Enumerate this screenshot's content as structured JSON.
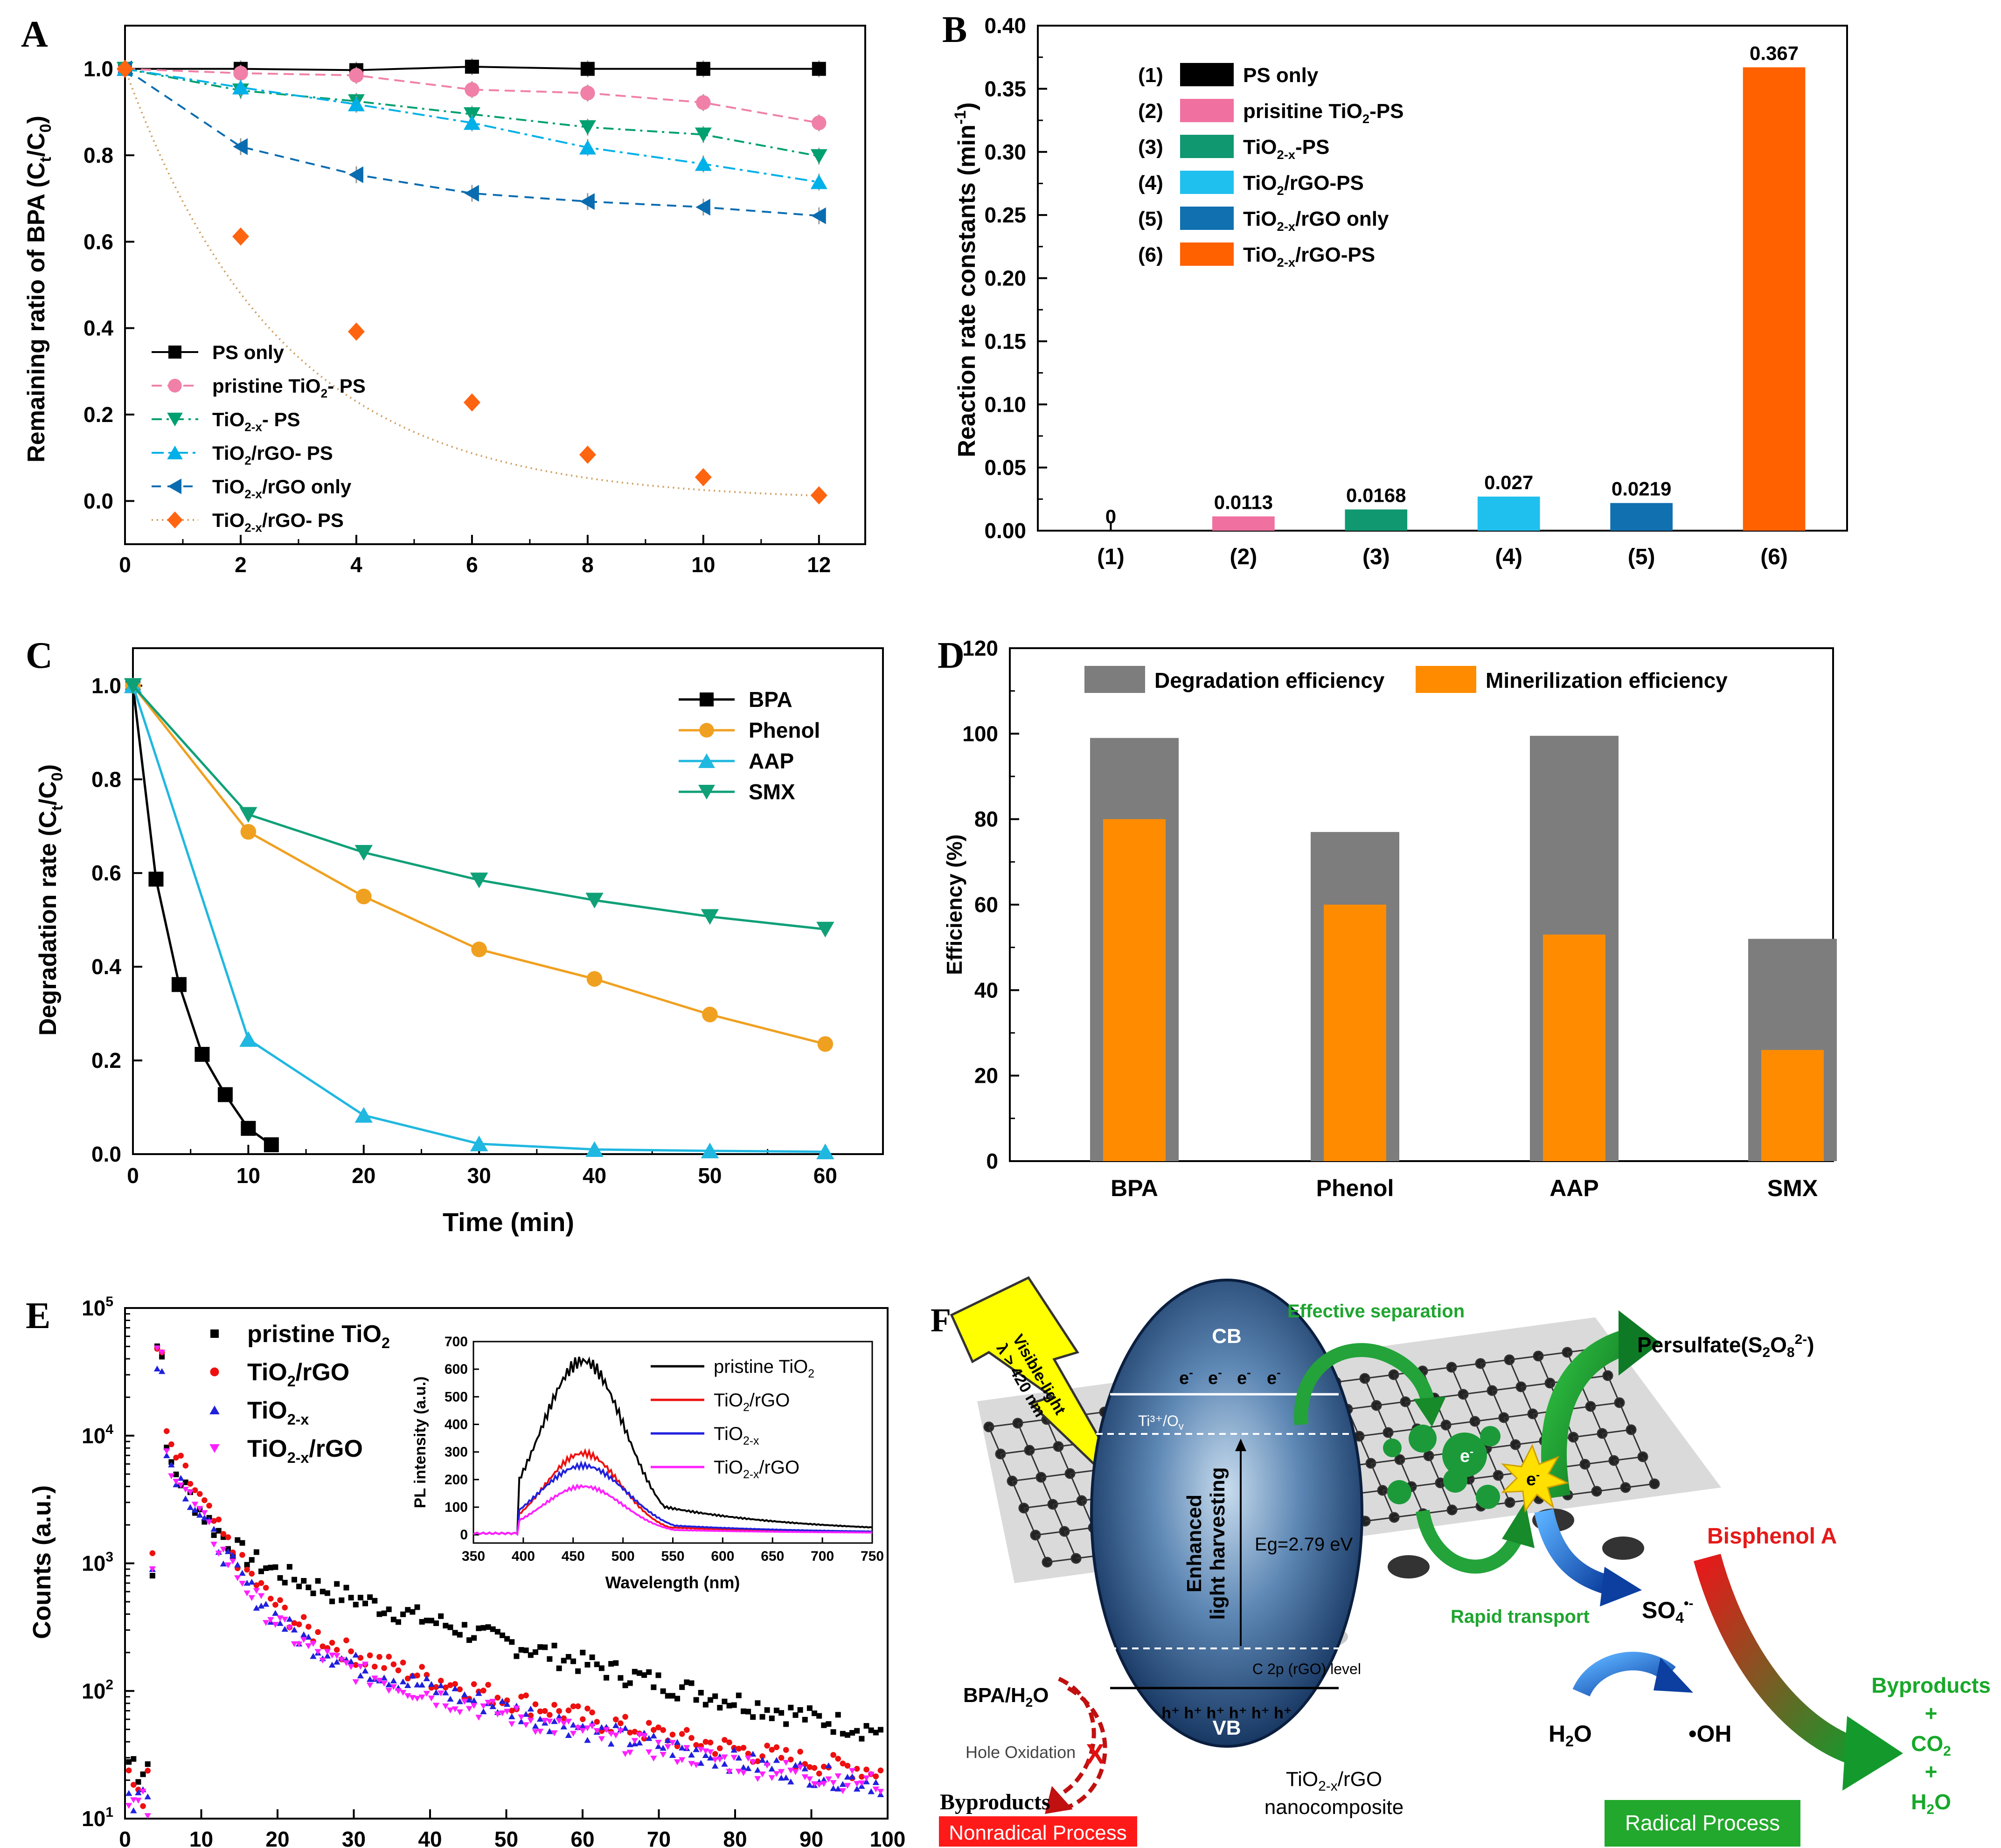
{
  "colors": {
    "black": "#000000",
    "pink": "#f080a8",
    "green": "#00a070",
    "cyan": "#00b0e8",
    "blue": "#0a6cb0",
    "orange": "#ff6410",
    "grey": "#7d7d7d",
    "amber": "#ff8c00",
    "phenol": "#f0a020",
    "aap": "#20b8e0",
    "smx": "#10a078",
    "pinkB": "#f070a0",
    "greenB": "#109870",
    "cyanB": "#20c0ee",
    "blueB": "#1070b0",
    "orangeB": "#ff6000",
    "red": "#ee1010",
    "purple": "#2020dd",
    "magenta": "#ff20ff"
  },
  "panel_labels": {
    "a": "A",
    "b": "B",
    "c": "C",
    "d": "D",
    "e": "E",
    "f": "F"
  },
  "chart_data": [
    {
      "id": "A",
      "type": "line",
      "ylabel_main": "Remaining ratio of BPA  (C",
      "ylabel_sub1": "t",
      "ylabel_mid": "/C",
      "ylabel_sub2": "0",
      "ylabel_end": ")",
      "xlim": [
        0,
        12.8
      ],
      "ylim": [
        -0.1,
        1.1
      ],
      "xticks": [
        "0",
        "2",
        "4",
        "6",
        "8",
        "10",
        "12"
      ],
      "yticks": [
        "0.0",
        "0.2",
        "0.4",
        "0.6",
        "0.8",
        "1.0"
      ],
      "x": [
        0,
        2,
        4,
        6,
        8,
        10,
        12
      ],
      "series": [
        {
          "name": "PS only",
          "values": [
            1.0,
            1.0,
            0.997,
            1.005,
            1.0,
            1.0,
            1.0
          ]
        },
        {
          "name": "pristine TiO",
          "sub": "2",
          "tail": "- PS",
          "values": [
            1.0,
            0.99,
            0.985,
            0.952,
            0.944,
            0.922,
            0.875
          ]
        },
        {
          "name": "TiO",
          "sub": "2-x",
          "tail": "- PS",
          "values": [
            1.0,
            0.95,
            0.925,
            0.895,
            0.865,
            0.848,
            0.798
          ]
        },
        {
          "name": "TiO",
          "sub": "2",
          "tail": "/rGO- PS",
          "values": [
            1.0,
            0.957,
            0.918,
            0.875,
            0.818,
            0.78,
            0.738
          ]
        },
        {
          "name": "TiO",
          "sub": "2-x",
          "tail": "/rGO only",
          "values": [
            1.0,
            0.82,
            0.755,
            0.712,
            0.693,
            0.68,
            0.66
          ]
        },
        {
          "name": "TiO",
          "sub": "2-x",
          "tail": "/rGO- PS",
          "values": [
            1.0,
            0.612,
            0.392,
            0.228,
            0.107,
            0.055,
            0.013
          ]
        }
      ]
    },
    {
      "id": "B",
      "type": "bar",
      "ylabel_main": "Reaction rate constants (min",
      "ylabel_sup": "-1",
      "ylabel_end": ")",
      "ylim": [
        0,
        0.4
      ],
      "yticks": [
        "0.00",
        "0.05",
        "0.10",
        "0.15",
        "0.20",
        "0.25",
        "0.30",
        "0.35",
        "0.40"
      ],
      "categories": [
        "(1)",
        "(2)",
        "(3)",
        "(4)",
        "(5)",
        "(6)"
      ],
      "values": [
        0,
        0.0113,
        0.0168,
        0.027,
        0.0219,
        0.367
      ],
      "value_labels": [
        "0",
        "0.0113",
        "0.0168",
        "0.027",
        "0.0219",
        "0.367"
      ],
      "legend": [
        {
          "num": "(1)",
          "name": "PS only"
        },
        {
          "num": "(2)",
          "name": "prisitine TiO",
          "sub": "2",
          "tail": "-PS"
        },
        {
          "num": "(3)",
          "name": "TiO",
          "sub": "2-x",
          "tail": "-PS"
        },
        {
          "num": "(4)",
          "name": "TiO",
          "sub": "2",
          "tail": "/rGO-PS"
        },
        {
          "num": "(5)",
          "name": "TiO",
          "sub": "2-x",
          "tail": "/rGO only"
        },
        {
          "num": "(6)",
          "name": "TiO",
          "sub": "2-x",
          "tail": "/rGO-PS"
        }
      ]
    },
    {
      "id": "C",
      "type": "line",
      "xlabel": "Time (min)",
      "ylabel_main": "Degradation rate (C",
      "ylabel_sub1": "t",
      "ylabel_mid": "/C",
      "ylabel_sub2": "0",
      "ylabel_end": ")",
      "xlim": [
        0,
        65
      ],
      "ylim": [
        0,
        1.08
      ],
      "xticks": [
        "0",
        "10",
        "20",
        "30",
        "40",
        "50",
        "60"
      ],
      "yticks": [
        "0.0",
        "0.2",
        "0.4",
        "0.6",
        "0.8",
        "1.0"
      ],
      "series": [
        {
          "name": "BPA",
          "x": [
            0,
            2,
            4,
            6,
            8,
            10,
            12
          ],
          "values": [
            1.0,
            0.587,
            0.362,
            0.213,
            0.127,
            0.055,
            0.02
          ]
        },
        {
          "name": "Phenol",
          "x": [
            0,
            10,
            20,
            30,
            40,
            50,
            60
          ],
          "values": [
            1.0,
            0.688,
            0.55,
            0.437,
            0.374,
            0.298,
            0.235
          ]
        },
        {
          "name": "AAP",
          "x": [
            0,
            10,
            20,
            30,
            40,
            50,
            60
          ],
          "values": [
            1.0,
            0.245,
            0.083,
            0.022,
            0.01,
            0.007,
            0.005
          ]
        },
        {
          "name": "SMX",
          "x": [
            0,
            10,
            20,
            30,
            40,
            50,
            60
          ],
          "values": [
            1.0,
            0.725,
            0.644,
            0.585,
            0.542,
            0.507,
            0.48
          ]
        }
      ]
    },
    {
      "id": "D",
      "type": "bar",
      "ylabel": "Efficiency (%)",
      "ylim": [
        0,
        120
      ],
      "yticks": [
        "0",
        "20",
        "40",
        "60",
        "80",
        "100",
        "120"
      ],
      "categories": [
        "BPA",
        "Phenol",
        "AAP",
        "SMX"
      ],
      "series": [
        {
          "name": "Degradation efficiency",
          "values": [
            99,
            77,
            99.5,
            52
          ]
        },
        {
          "name": "Minerilization efficiency",
          "values": [
            80,
            60,
            53,
            26
          ]
        }
      ]
    },
    {
      "id": "E",
      "type": "scatter",
      "ylabel": "Counts (a.u.)",
      "xlim": [
        0,
        100
      ],
      "ylim_log10": [
        1,
        5
      ],
      "xticks": [
        "0",
        "10",
        "20",
        "30",
        "40",
        "50",
        "60",
        "70",
        "80",
        "90",
        "100"
      ],
      "yticks": [
        {
          "b": "10",
          "e": "1"
        },
        {
          "b": "10",
          "e": "2"
        },
        {
          "b": "10",
          "e": "3"
        },
        {
          "b": "10",
          "e": "4"
        },
        {
          "b": "10",
          "e": "5"
        }
      ],
      "series": [
        {
          "name": "pristine TiO",
          "sub": "2",
          "peak": 50000,
          "fast": 8000,
          "slow": 1500,
          "tau1": 3.2,
          "tau2": 24,
          "bg": 20,
          "pre": 28
        },
        {
          "name": "TiO",
          "sub": "2",
          "tail": "/rGO",
          "peak": 45000,
          "fast": 12000,
          "slow": 500,
          "tau1": 3.8,
          "tau2": 24,
          "bg": 14,
          "pre": 18
        },
        {
          "name": "TiO",
          "sub": "2-x",
          "peak": 40000,
          "fast": 9000,
          "slow": 420,
          "tau1": 3.8,
          "tau2": 24,
          "bg": 11,
          "pre": 15
        },
        {
          "name": "TiO",
          "sub": "2-x",
          "tail": "/rGO",
          "peak": 42000,
          "fast": 9000,
          "slow": 360,
          "tau1": 3.8,
          "tau2": 24,
          "bg": 12,
          "pre": 12
        }
      ],
      "inset": {
        "type": "line",
        "xlabel": "Wavelength (nm)",
        "ylabel": "PL intensity (a.u.)",
        "xlim": [
          350,
          750
        ],
        "ylim": [
          -30,
          700
        ],
        "xticks": [
          "350",
          "400",
          "450",
          "500",
          "550",
          "600",
          "650",
          "700",
          "750"
        ],
        "yticks": [
          "0",
          "100",
          "200",
          "300",
          "400",
          "500",
          "600",
          "700"
        ],
        "series": [
          {
            "name": "pristine TiO",
            "sub": "2",
            "peak": 625,
            "sigma": 42,
            "tail": 0.5
          },
          {
            "name": "TiO",
            "sub": "2",
            "tail_txt": "/rGO",
            "peak": 290,
            "sigma": 38,
            "tail": 0.25
          },
          {
            "name": "TiO",
            "sub": "2-x",
            "peak": 245,
            "sigma": 44,
            "tail": 0.4
          },
          {
            "name": "TiO",
            "sub": "2-x",
            "tail_txt": "/rGO",
            "peak": 170,
            "sigma": 40,
            "tail": 0.25
          }
        ]
      }
    }
  ],
  "panel_f": {
    "visible_light_1": "Visible-light",
    "visible_light_2": "λ > 420 nm",
    "cb": "CB",
    "vb": "VB",
    "electron": "e",
    "electron_sup": "-",
    "ti_ov": "Ti³⁺/O",
    "ti_ov_sub": "v",
    "enhanced_1": "Enhanced",
    "enhanced_2": "light harvesting",
    "eg": "Eg=2.79 eV",
    "c2p": "C 2p (rGO) level",
    "holes": "h⁺ h⁺ h⁺ h⁺ h⁺ h⁺",
    "composite_1": "TiO",
    "composite_sub": "2-x",
    "composite_2": "/rGO",
    "composite_3": "nanocomposite",
    "effective": "Effective separation",
    "rapid": "Rapid transport",
    "persulfate": "Persulfate(S",
    "persulfate_sub": "2",
    "persulfate_mid": "O",
    "persulfate_sub2": "8",
    "persulfate_sup": "2-",
    "persulfate_end": ")",
    "so4": "SO",
    "so4_sub": "4",
    "so4_sup": "•-",
    "h2o_1": "H",
    "h2o_sub": "2",
    "h2o_2": "O",
    "oh": "•OH",
    "bisphenol": "Bisphenol A",
    "byproducts_right_1": "Byproducts",
    "plus": "+",
    "co2_1": "CO",
    "co2_sub": "2",
    "bpa_h2o_1": "BPA/H",
    "bpa_h2o_sub": "2",
    "bpa_h2o_2": "O",
    "hole_oxidation": "Hole Oxidation",
    "x_mark": "X",
    "byproducts_left": "Byproducts",
    "nonradical": "Nonradical Process",
    "radical": "Radical Process"
  }
}
